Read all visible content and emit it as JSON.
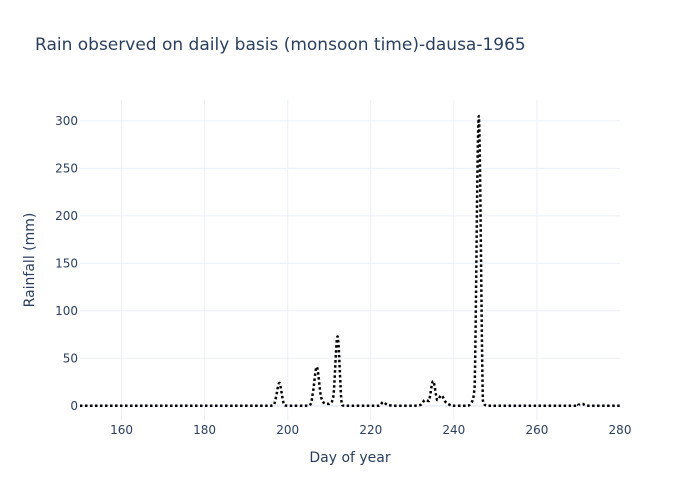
{
  "chart_data": {
    "type": "line",
    "title": "Rain observed on daily basis (monsoon time)-dausa-1965",
    "xlabel": "Day of year",
    "ylabel": "Rainfall (mm)",
    "xlim": [
      150,
      280
    ],
    "ylim": [
      -15,
      322
    ],
    "xticks": [
      160,
      180,
      200,
      220,
      240,
      260,
      280
    ],
    "yticks": [
      0,
      50,
      100,
      150,
      200,
      250,
      300
    ],
    "grid": true,
    "line_style": "dotted",
    "line_color": "#000000",
    "series": [
      {
        "x": [
          150,
          160,
          170,
          180,
          190,
          196,
          197,
          198,
          199,
          200,
          205,
          206,
          207,
          208,
          209,
          210,
          211,
          212,
          213,
          214,
          220,
          222,
          223,
          224,
          226,
          230,
          232,
          233,
          234,
          235,
          236,
          237,
          238,
          239,
          240,
          243,
          244,
          245,
          246,
          247,
          248,
          250,
          260,
          269,
          270,
          271,
          272,
          275,
          280
        ],
        "y": [
          0,
          0,
          0,
          0,
          0,
          0,
          6,
          24,
          3,
          0,
          0,
          12,
          41,
          10,
          2,
          2,
          10,
          73,
          2,
          0,
          0,
          0,
          4,
          1,
          0,
          0,
          1,
          6,
          5,
          26,
          6,
          11,
          4,
          1,
          0,
          0,
          2,
          20,
          305,
          5,
          0,
          0,
          0,
          0,
          1,
          2,
          0,
          0,
          0
        ]
      }
    ]
  }
}
